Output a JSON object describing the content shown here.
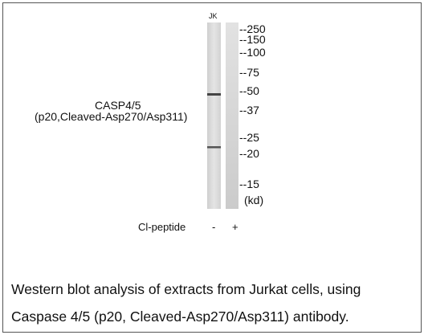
{
  "lane_label": "JK",
  "markers": [
    "--250",
    "--150",
    "--100",
    "--75",
    "--50",
    "--37",
    "--25",
    "--20",
    "--15",
    "(kd)"
  ],
  "target": {
    "name": "CASP4/5",
    "detail": "(p20,Cleaved-Asp270/Asp311)"
  },
  "peptide": {
    "label": "Cl-peptide",
    "lanes": [
      "-",
      "+"
    ]
  },
  "caption": [
    "Western blot analysis of extracts from Jurkat cells, using",
    "Caspase 4/5 (p20, Cleaved-Asp270/Asp311) antibody."
  ]
}
